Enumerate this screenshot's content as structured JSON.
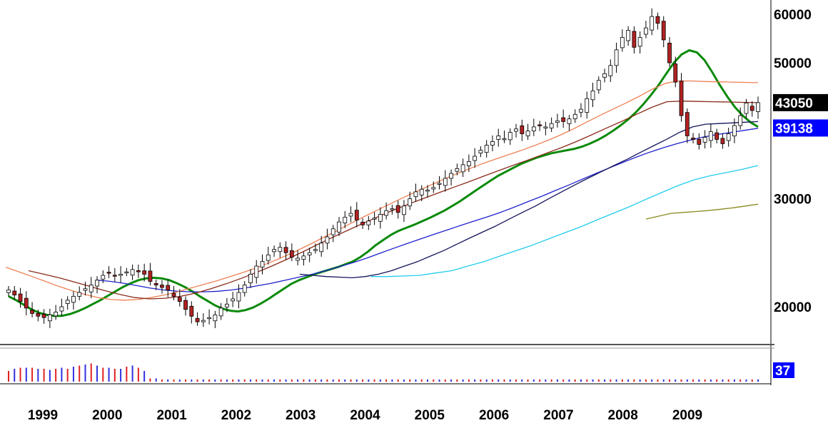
{
  "chart_data": {
    "type": "candlestick",
    "x_tick_labels": [
      "1999",
      "2000",
      "2001",
      "2002",
      "2003",
      "2004",
      "2005",
      "2006",
      "2007",
      "2008",
      "2009"
    ],
    "y_tick_labels": [
      "60000",
      "50000",
      "30000",
      "20000"
    ],
    "ylim": [
      17000,
      61000
    ],
    "y_scale": "log",
    "price_labels": [
      {
        "value": 43050,
        "text": "43050",
        "bg": "#000000",
        "fg": "#ffffff"
      },
      {
        "value": 39138,
        "text": "39138",
        "bg": "#0000ff",
        "fg": "#ffffff"
      }
    ],
    "volume_label": {
      "text": "37",
      "bg": "#0000ff",
      "fg": "#ffffff"
    },
    "up_color": "#ffffff",
    "down_color": "#b22222",
    "ohlc_close": [
      21300,
      20900,
      20400,
      19900,
      19500,
      19300,
      19200,
      19400,
      19600,
      20000,
      20500,
      20800,
      21100,
      21400,
      21700,
      22100,
      22500,
      22700,
      22500,
      22600,
      22800,
      23000,
      22800,
      22600,
      22000,
      21700,
      21500,
      21300,
      20800,
      20400,
      19800,
      19300,
      18900,
      19000,
      19200,
      19400,
      19900,
      20200,
      20600,
      21100,
      21700,
      22600,
      23300,
      23700,
      24300,
      24800,
      25000,
      24500,
      24100,
      24000,
      24200,
      24500,
      24800,
      25400,
      26000,
      26800,
      27500,
      28000,
      28400,
      27700,
      27200,
      27600,
      27900,
      28300,
      28700,
      28900,
      28500,
      29200,
      30000,
      30800,
      31100,
      31000,
      31300,
      31800,
      32400,
      33000,
      33600,
      34100,
      34500,
      35200,
      36000,
      36700,
      37200,
      38000,
      37600,
      38500,
      39000,
      38300,
      38700,
      39300,
      39600,
      39300,
      39800,
      40200,
      40100,
      40500,
      41200,
      42000,
      43700,
      45000,
      46800,
      48000,
      49500,
      52500,
      55000,
      56500,
      53000,
      55000,
      57000,
      59500,
      58000,
      54500,
      50000,
      46500,
      41000,
      38000,
      37500,
      36800,
      37800,
      38600,
      37500,
      36900,
      38300,
      39500,
      41000,
      43000,
      41800,
      43050
    ],
    "ma_series": [
      {
        "color": "#0a8a0a",
        "values": [
          20800,
          20500,
          20150,
          19800,
          19550,
          19400,
          19320,
          19330,
          19450,
          19650,
          19900,
          20200,
          20500,
          20850,
          21200,
          21550,
          21850,
          22100,
          22250,
          22300,
          22250,
          22100,
          21850,
          21550,
          21200,
          20800,
          20450,
          20100,
          19850,
          19700,
          19650,
          19750,
          19950,
          20250,
          20600,
          21000,
          21400,
          21800,
          22100,
          22350,
          22600,
          22800,
          23000,
          23200,
          23450,
          23700,
          24100,
          24600,
          25200,
          25700,
          26200,
          26600,
          26900,
          27200,
          27550,
          27900,
          28300,
          28700,
          29200,
          29700,
          30300,
          30900,
          31500,
          32100,
          32700,
          33200,
          33700,
          34200,
          34600,
          35000,
          35300,
          35600,
          35800,
          36000,
          36200,
          36500,
          36900,
          37400,
          38000,
          38700,
          39500,
          40400,
          41500,
          42800,
          44300,
          46000,
          48000,
          50000,
          51600,
          52400,
          52000,
          50500,
          48300,
          46000,
          44000,
          42300,
          41000,
          40000,
          39300
        ]
      },
      {
        "color": "#2020cc",
        "values": [
          22100,
          22000,
          21850,
          21650,
          21450,
          21300,
          21200,
          21150,
          21150,
          21200,
          21300,
          21450,
          21650,
          21850,
          22100,
          22350,
          22600,
          22900,
          23250,
          23600,
          24000,
          24450,
          24900,
          25350,
          25800,
          26250,
          26700,
          27150,
          27600,
          28050,
          28550,
          29100,
          29700,
          30300,
          30950,
          31600,
          32300,
          33000,
          33700,
          34400,
          35100,
          35750,
          36350,
          36900,
          37400,
          37850,
          38200,
          38500,
          38800,
          39100
        ]
      },
      {
        "color": "#ee8055",
        "values": [
          23200,
          22800,
          22400,
          22000,
          21600,
          21250,
          20950,
          20700,
          20550,
          20500,
          20550,
          20700,
          20900,
          21150,
          21450,
          21750,
          22050,
          22400,
          22750,
          23150,
          23600,
          24100,
          24650,
          25250,
          25900,
          26550,
          27250,
          27950,
          28650,
          29350,
          30050,
          30750,
          31450,
          32150,
          32850,
          33500,
          34150,
          34750,
          35350,
          35950,
          36600,
          37300,
          38100,
          39000,
          40000,
          41000,
          42000,
          43000,
          44100,
          45300,
          46300,
          46700,
          46700,
          46600,
          46550,
          46500,
          46450,
          46400
        ]
      },
      {
        "color": "#8b2a1a",
        "values": [
          22900,
          22600,
          22300,
          21950,
          21600,
          21250,
          20950,
          20700,
          20600,
          20650,
          20800,
          21050,
          21400,
          21800,
          22250,
          22750,
          23300,
          23900,
          24550,
          25250,
          25950,
          26650,
          27350,
          28050,
          28750,
          29400,
          30050,
          30700,
          31350,
          32000,
          32700,
          33400,
          34100,
          34800,
          35550,
          36300,
          37150,
          38100,
          39100,
          40100,
          41200,
          42300,
          43200,
          43300,
          43250,
          43200,
          43150,
          43100,
          43050
        ]
      },
      {
        "color": "#14145c",
        "values": [
          22600,
          22500,
          22400,
          22350,
          22300,
          22400,
          22600,
          22900,
          23300,
          23700,
          24200,
          24700,
          25300,
          25900,
          26500,
          27100,
          27800,
          28500,
          29200,
          30000,
          30800,
          31600,
          32400,
          33200,
          34000,
          34800,
          35700,
          36600,
          37500,
          38500,
          39300,
          39700,
          39800,
          39900,
          40000,
          40100
        ]
      },
      {
        "color": "#22ccee",
        "values": [
          22400,
          22400,
          22450,
          22500,
          22700,
          22900,
          23300,
          23700,
          24200,
          24700,
          25200,
          25800,
          26400,
          27000,
          27700,
          28400,
          29100,
          29900,
          30700,
          31500,
          32200,
          32700,
          33100,
          33500,
          34000
        ]
      },
      {
        "color": "#8a8a20",
        "values": [
          27800,
          28100,
          28400,
          28500,
          28600,
          28700,
          28850,
          29000,
          29200,
          29400
        ]
      }
    ],
    "volume": {
      "values": [
        10,
        12,
        13,
        13,
        13,
        12,
        12,
        11,
        12,
        13,
        12,
        14,
        15,
        16,
        17,
        15,
        13,
        13,
        12,
        12,
        14,
        15,
        13,
        10,
        3,
        3,
        2,
        2,
        2,
        2,
        2,
        2,
        2,
        2,
        2,
        2,
        2,
        2,
        2,
        2,
        2,
        2,
        2,
        2,
        2,
        2,
        2,
        2,
        2,
        2,
        2,
        2,
        2,
        2,
        2,
        2,
        2,
        2,
        2,
        2,
        2,
        2,
        2,
        2,
        2,
        2,
        2,
        2,
        2,
        2,
        2,
        2,
        2,
        2,
        2,
        2,
        2,
        2,
        2,
        2,
        2,
        2,
        2,
        2,
        2,
        2,
        2,
        2,
        2,
        2,
        2,
        2,
        2,
        2,
        2,
        2,
        2,
        2,
        2,
        2,
        2,
        2,
        2,
        2,
        2,
        2,
        2,
        2,
        2,
        2,
        2,
        2,
        2,
        2,
        2,
        2,
        2,
        2,
        2,
        2,
        2,
        2,
        2,
        2,
        2,
        2,
        2,
        2
      ],
      "colors": [
        "#e02020",
        "#3030e0"
      ]
    }
  }
}
